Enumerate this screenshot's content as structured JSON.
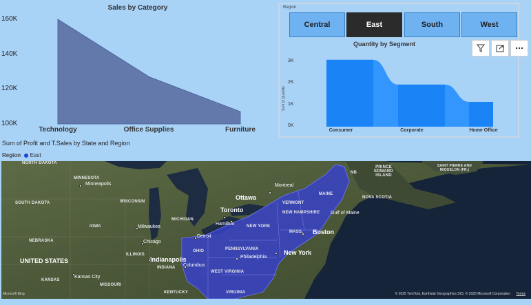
{
  "area_chart": {
    "title": "Sales by Category"
  },
  "chart_data": [
    {
      "type": "area",
      "title": "Sales by Category",
      "categories": [
        "Technology",
        "Office Supplies",
        "Furniture"
      ],
      "values": [
        160000,
        127000,
        107000
      ],
      "yticks": [
        "100K",
        "120K",
        "140K",
        "160K"
      ],
      "ylim": [
        100000,
        160000
      ],
      "color": "#6379ac"
    },
    {
      "type": "area",
      "title": "Quantity by Segment",
      "categories": [
        "Consumer",
        "Corporate",
        "Home Office"
      ],
      "values": [
        3100,
        1950,
        1150
      ],
      "yticks": [
        "0K",
        "1K",
        "2K",
        "3K"
      ],
      "ylabel": "Sum of Quantity",
      "ylim": [
        0,
        3000
      ],
      "color": "#1e8bff"
    }
  ],
  "slicer": {
    "caption": "Region",
    "options": [
      "Central",
      "East",
      "South",
      "West"
    ],
    "selected": "East"
  },
  "segment_chart": {
    "title": "Quantity by Segment",
    "ylabel": "Sum of Quantity"
  },
  "visual_icons": [
    "filter-icon",
    "focus-mode-icon",
    "more-options-icon"
  ],
  "map": {
    "heading": "Sum of Profit and T.Sales by State and Region",
    "legend_label": "Region",
    "legend_item": "East",
    "legend_color": "#1f3fd8",
    "highlight_color": "#3742c8",
    "labels": {
      "north_dakota": "NORTH DAKOTA",
      "minnesota": "MINNESOTA",
      "south_dakota": "SOUTH DAKOTA",
      "wisconsin": "WISCONSIN",
      "iowa": "IOWA",
      "nebraska": "NEBRASKA",
      "illinois": "ILLINOIS",
      "kansas": "KANSAS",
      "missouri": "MISSOURI",
      "indiana": "INDIANA",
      "kentucky": "KENTUCKY",
      "michigan": "MICHIGAN",
      "ohio": "OHIO",
      "pennsylvania": "PENNSYLVANIA",
      "new_york": "NEW YORK",
      "vermont": "VERMONT",
      "new_hampshire": "NEW HAMPSHIRE",
      "maine": "MAINE",
      "mass": "MASS.",
      "west_virginia": "WEST VIRGINIA",
      "virginia": "VIRGINIA",
      "nb": "NB",
      "pei": "PRINCE EDWARD ISLAND",
      "nova_scotia": "NOVA SCOTIA",
      "saint_pierre": "SAINT PIERRE AND MIQUELON (FR.)",
      "gulf_of_maine": "Gulf of Maine",
      "united_states": "UNITED STATES",
      "minneapolis": "Minneapolis",
      "milwaukee": "Milwaukee",
      "chicago": "Chicago",
      "detroit": "Detroit",
      "toronto": "Toronto",
      "hamilton": "Hamilton",
      "ottawa": "Ottawa",
      "montreal": "Montreal",
      "boston": "Boston",
      "new_york_city": "New York",
      "philadelphia": "Philadelphia",
      "columbus": "Columbus",
      "indianapolis": "Indianapolis",
      "kansas_city": "Kansas City"
    },
    "attribution": "© 2025 TomTom, Earthstar Geographics SIO, © 2025 Microsoft Corporation",
    "terms": "Terms",
    "bing_logo": "Microsoft Bing"
  }
}
